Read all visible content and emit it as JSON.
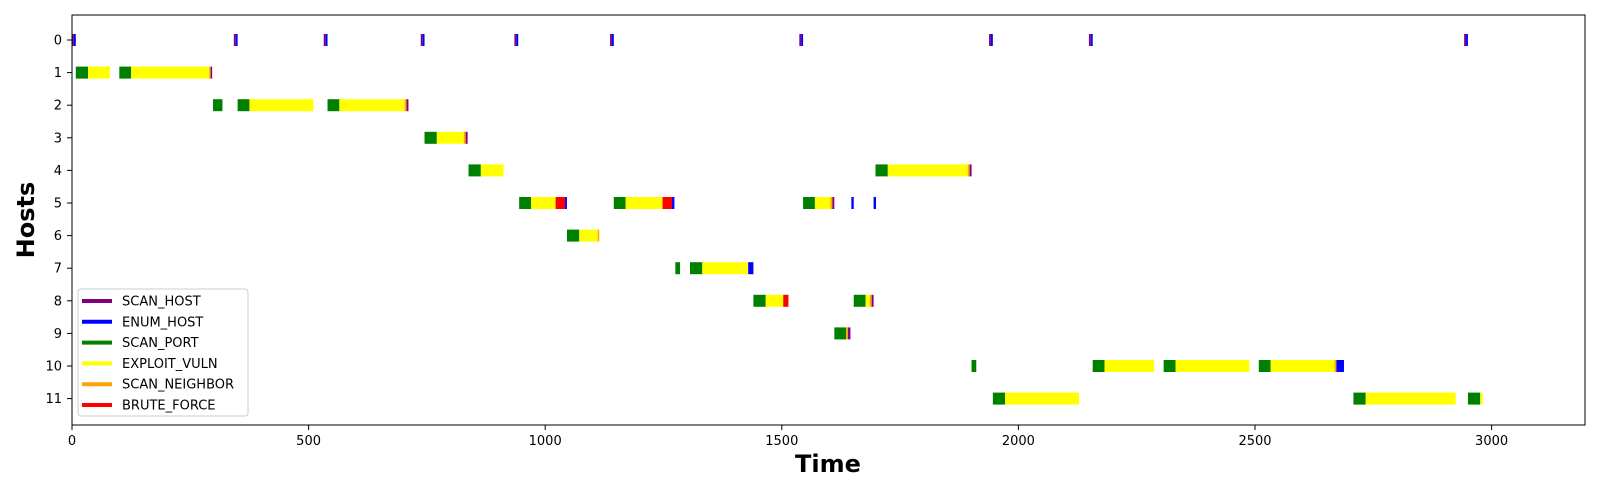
{
  "chart_data": {
    "type": "gantt",
    "xlabel": "Time",
    "ylabel": "Hosts",
    "xlim": [
      0,
      3140
    ],
    "x_ticks": [
      0,
      500,
      1000,
      1500,
      2000,
      2500,
      3000
    ],
    "hosts": [
      "0",
      "1",
      "2",
      "3",
      "4",
      "5",
      "6",
      "7",
      "8",
      "9",
      "10",
      "11"
    ],
    "grid": false,
    "legend_placement": "lower-left",
    "actions": [
      {
        "name": "SCAN_HOST",
        "color": "#800080"
      },
      {
        "name": "ENUM_HOST",
        "color": "#0000ff"
      },
      {
        "name": "SCAN_PORT",
        "color": "#008000"
      },
      {
        "name": "EXPLOIT_VULN",
        "color": "#ffff00"
      },
      {
        "name": "SCAN_NEIGHBOR",
        "color": "#ffa500"
      },
      {
        "name": "BRUTE_FORCE",
        "color": "#ff0000"
      }
    ],
    "segments": [
      {
        "host": 0,
        "action": "SCAN_HOST",
        "start": 0,
        "end": 4
      },
      {
        "host": 0,
        "action": "ENUM_HOST",
        "start": 4,
        "end": 8
      },
      {
        "host": 0,
        "action": "SCAN_HOST",
        "start": 342,
        "end": 346
      },
      {
        "host": 0,
        "action": "ENUM_HOST",
        "start": 346,
        "end": 350
      },
      {
        "host": 0,
        "action": "SCAN_HOST",
        "start": 532,
        "end": 536
      },
      {
        "host": 0,
        "action": "ENUM_HOST",
        "start": 536,
        "end": 540
      },
      {
        "host": 0,
        "action": "SCAN_HOST",
        "start": 737,
        "end": 741
      },
      {
        "host": 0,
        "action": "ENUM_HOST",
        "start": 741,
        "end": 745
      },
      {
        "host": 0,
        "action": "SCAN_HOST",
        "start": 935,
        "end": 939
      },
      {
        "host": 0,
        "action": "ENUM_HOST",
        "start": 939,
        "end": 943
      },
      {
        "host": 0,
        "action": "SCAN_HOST",
        "start": 1137,
        "end": 1141
      },
      {
        "host": 0,
        "action": "ENUM_HOST",
        "start": 1141,
        "end": 1145
      },
      {
        "host": 0,
        "action": "SCAN_HOST",
        "start": 1537,
        "end": 1541
      },
      {
        "host": 0,
        "action": "ENUM_HOST",
        "start": 1541,
        "end": 1545
      },
      {
        "host": 0,
        "action": "SCAN_HOST",
        "start": 1938,
        "end": 1942
      },
      {
        "host": 0,
        "action": "ENUM_HOST",
        "start": 1942,
        "end": 1946
      },
      {
        "host": 0,
        "action": "SCAN_HOST",
        "start": 2149,
        "end": 2153
      },
      {
        "host": 0,
        "action": "ENUM_HOST",
        "start": 2153,
        "end": 2157
      },
      {
        "host": 0,
        "action": "SCAN_HOST",
        "start": 2942,
        "end": 2946
      },
      {
        "host": 0,
        "action": "ENUM_HOST",
        "start": 2946,
        "end": 2950
      },
      {
        "host": 1,
        "action": "SCAN_PORT",
        "start": 8,
        "end": 34
      },
      {
        "host": 1,
        "action": "EXPLOIT_VULN",
        "start": 34,
        "end": 80
      },
      {
        "host": 1,
        "action": "SCAN_PORT",
        "start": 100,
        "end": 125
      },
      {
        "host": 1,
        "action": "EXPLOIT_VULN",
        "start": 125,
        "end": 290
      },
      {
        "host": 1,
        "action": "SCAN_NEIGHBOR",
        "start": 290,
        "end": 293
      },
      {
        "host": 1,
        "action": "SCAN_HOST",
        "start": 293,
        "end": 296
      },
      {
        "host": 2,
        "action": "SCAN_PORT",
        "start": 298,
        "end": 318
      },
      {
        "host": 2,
        "action": "SCAN_PORT",
        "start": 350,
        "end": 375
      },
      {
        "host": 2,
        "action": "EXPLOIT_VULN",
        "start": 375,
        "end": 510
      },
      {
        "host": 2,
        "action": "SCAN_PORT",
        "start": 540,
        "end": 565
      },
      {
        "host": 2,
        "action": "EXPLOIT_VULN",
        "start": 565,
        "end": 703
      },
      {
        "host": 2,
        "action": "SCAN_NEIGHBOR",
        "start": 703,
        "end": 707
      },
      {
        "host": 2,
        "action": "SCAN_HOST",
        "start": 707,
        "end": 711
      },
      {
        "host": 3,
        "action": "SCAN_PORT",
        "start": 745,
        "end": 771
      },
      {
        "host": 3,
        "action": "EXPLOIT_VULN",
        "start": 771,
        "end": 828
      },
      {
        "host": 3,
        "action": "SCAN_NEIGHBOR",
        "start": 828,
        "end": 832
      },
      {
        "host": 3,
        "action": "SCAN_HOST",
        "start": 832,
        "end": 836
      },
      {
        "host": 4,
        "action": "SCAN_PORT",
        "start": 838,
        "end": 864
      },
      {
        "host": 4,
        "action": "EXPLOIT_VULN",
        "start": 864,
        "end": 912
      },
      {
        "host": 4,
        "action": "SCAN_PORT",
        "start": 1698,
        "end": 1724
      },
      {
        "host": 4,
        "action": "EXPLOIT_VULN",
        "start": 1724,
        "end": 1893
      },
      {
        "host": 4,
        "action": "SCAN_NEIGHBOR",
        "start": 1893,
        "end": 1897
      },
      {
        "host": 4,
        "action": "SCAN_HOST",
        "start": 1897,
        "end": 1901
      },
      {
        "host": 5,
        "action": "SCAN_PORT",
        "start": 945,
        "end": 970
      },
      {
        "host": 5,
        "action": "EXPLOIT_VULN",
        "start": 970,
        "end": 1022
      },
      {
        "host": 5,
        "action": "BRUTE_FORCE",
        "start": 1022,
        "end": 1042
      },
      {
        "host": 5,
        "action": "ENUM_HOST",
        "start": 1042,
        "end": 1046
      },
      {
        "host": 5,
        "action": "SCAN_PORT",
        "start": 1145,
        "end": 1170
      },
      {
        "host": 5,
        "action": "EXPLOIT_VULN",
        "start": 1170,
        "end": 1248
      },
      {
        "host": 5,
        "action": "BRUTE_FORCE",
        "start": 1248,
        "end": 1268
      },
      {
        "host": 5,
        "action": "ENUM_HOST",
        "start": 1268,
        "end": 1273
      },
      {
        "host": 5,
        "action": "SCAN_PORT",
        "start": 1545,
        "end": 1570
      },
      {
        "host": 5,
        "action": "EXPLOIT_VULN",
        "start": 1570,
        "end": 1603
      },
      {
        "host": 5,
        "action": "SCAN_NEIGHBOR",
        "start": 1603,
        "end": 1607
      },
      {
        "host": 5,
        "action": "SCAN_HOST",
        "start": 1607,
        "end": 1611
      },
      {
        "host": 5,
        "action": "ENUM_HOST",
        "start": 1647,
        "end": 1652
      },
      {
        "host": 5,
        "action": "ENUM_HOST",
        "start": 1694,
        "end": 1699
      },
      {
        "host": 6,
        "action": "SCAN_PORT",
        "start": 1046,
        "end": 1072
      },
      {
        "host": 6,
        "action": "EXPLOIT_VULN",
        "start": 1072,
        "end": 1111
      },
      {
        "host": 6,
        "action": "SCAN_NEIGHBOR",
        "start": 1111,
        "end": 1114
      },
      {
        "host": 7,
        "action": "SCAN_PORT",
        "start": 1275,
        "end": 1285
      },
      {
        "host": 7,
        "action": "SCAN_PORT",
        "start": 1306,
        "end": 1332
      },
      {
        "host": 7,
        "action": "EXPLOIT_VULN",
        "start": 1332,
        "end": 1429
      },
      {
        "host": 7,
        "action": "ENUM_HOST",
        "start": 1429,
        "end": 1440
      },
      {
        "host": 8,
        "action": "SCAN_PORT",
        "start": 1440,
        "end": 1466
      },
      {
        "host": 8,
        "action": "EXPLOIT_VULN",
        "start": 1466,
        "end": 1503
      },
      {
        "host": 8,
        "action": "BRUTE_FORCE",
        "start": 1503,
        "end": 1514
      },
      {
        "host": 8,
        "action": "SCAN_PORT",
        "start": 1652,
        "end": 1677
      },
      {
        "host": 8,
        "action": "EXPLOIT_VULN",
        "start": 1677,
        "end": 1686
      },
      {
        "host": 8,
        "action": "SCAN_NEIGHBOR",
        "start": 1686,
        "end": 1690
      },
      {
        "host": 8,
        "action": "SCAN_HOST",
        "start": 1690,
        "end": 1694
      },
      {
        "host": 9,
        "action": "SCAN_PORT",
        "start": 1611,
        "end": 1636
      },
      {
        "host": 9,
        "action": "SCAN_NEIGHBOR",
        "start": 1636,
        "end": 1640
      },
      {
        "host": 9,
        "action": "SCAN_HOST",
        "start": 1640,
        "end": 1645
      },
      {
        "host": 10,
        "action": "SCAN_PORT",
        "start": 1901,
        "end": 1911
      },
      {
        "host": 10,
        "action": "SCAN_PORT",
        "start": 2157,
        "end": 2182
      },
      {
        "host": 10,
        "action": "EXPLOIT_VULN",
        "start": 2182,
        "end": 2287
      },
      {
        "host": 10,
        "action": "SCAN_PORT",
        "start": 2307,
        "end": 2332
      },
      {
        "host": 10,
        "action": "EXPLOIT_VULN",
        "start": 2332,
        "end": 2488
      },
      {
        "host": 10,
        "action": "SCAN_PORT",
        "start": 2508,
        "end": 2533
      },
      {
        "host": 10,
        "action": "EXPLOIT_VULN",
        "start": 2533,
        "end": 2668
      },
      {
        "host": 10,
        "action": "SCAN_NEIGHBOR",
        "start": 2668,
        "end": 2672
      },
      {
        "host": 10,
        "action": "ENUM_HOST",
        "start": 2672,
        "end": 2688
      },
      {
        "host": 11,
        "action": "SCAN_PORT",
        "start": 1946,
        "end": 1972
      },
      {
        "host": 11,
        "action": "EXPLOIT_VULN",
        "start": 1972,
        "end": 2128
      },
      {
        "host": 11,
        "action": "SCAN_PORT",
        "start": 2708,
        "end": 2734
      },
      {
        "host": 11,
        "action": "EXPLOIT_VULN",
        "start": 2734,
        "end": 2924
      },
      {
        "host": 11,
        "action": "SCAN_PORT",
        "start": 2950,
        "end": 2976
      },
      {
        "host": 11,
        "action": "EXPLOIT_VULN",
        "start": 2976,
        "end": 2981
      }
    ]
  }
}
